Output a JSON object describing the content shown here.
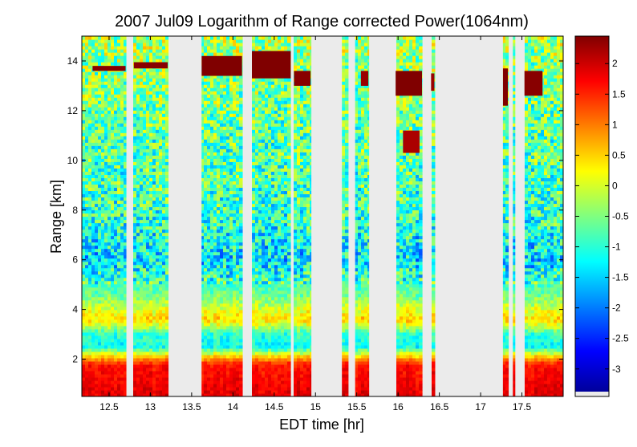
{
  "chart_data": {
    "type": "heatmap",
    "title": "2007 Jul09  Logarithm of Range corrected Power(1064nm)",
    "xlabel": "EDT time [hr]",
    "ylabel": "Range [km]",
    "xlim": [
      12.17,
      18.0
    ],
    "ylim": [
      0.5,
      15.0
    ],
    "x_ticks": [
      12.5,
      13,
      13.5,
      14,
      14.5,
      15,
      15.5,
      16,
      16.5,
      17,
      17.5
    ],
    "x_tick_labels": [
      "12.5",
      "13",
      "13.5",
      "14",
      "14.5",
      "15",
      "15.5",
      "16",
      "16.5",
      "17",
      "17.5"
    ],
    "y_ticks": [
      2,
      4,
      6,
      8,
      10,
      12,
      14
    ],
    "y_tick_labels": [
      "2",
      "4",
      "6",
      "8",
      "10",
      "12",
      "14"
    ],
    "colorbar": {
      "colormap": "jet",
      "range": [
        -3.45,
        2.45
      ],
      "ticks": [
        2,
        1.5,
        1,
        0.5,
        0,
        -0.5,
        -1,
        -1.5,
        -2,
        -2.5,
        -3
      ],
      "tick_labels": [
        "2",
        "1.5",
        "1",
        "0.5",
        "0",
        "-0.5",
        "-1",
        "-1.5",
        "-2",
        "-2.5",
        "-3"
      ]
    },
    "missing_color": "#ebebeb",
    "data_gaps_hr": [
      [
        12.71,
        12.78
      ],
      [
        13.22,
        13.62
      ],
      [
        14.12,
        14.22
      ],
      [
        14.71,
        14.73
      ],
      [
        14.95,
        15.32
      ],
      [
        15.4,
        15.48
      ],
      [
        15.65,
        15.97
      ],
      [
        16.3,
        16.39
      ],
      [
        16.45,
        17.27
      ],
      [
        17.34,
        17.39
      ],
      [
        17.42,
        17.53
      ]
    ],
    "layer_profile": [
      {
        "range_km": 0.5,
        "value": 1.9
      },
      {
        "range_km": 1.8,
        "value": 1.6
      },
      {
        "range_km": 2.1,
        "value": 0.6
      },
      {
        "range_km": 2.5,
        "value": -1.2
      },
      {
        "range_km": 3.0,
        "value": -1.0
      },
      {
        "range_km": 3.6,
        "value": 0.5
      },
      {
        "range_km": 4.6,
        "value": -0.6
      },
      {
        "range_km": 6.0,
        "value": -1.4
      },
      {
        "range_km": 8.0,
        "value": -0.9
      },
      {
        "range_km": 11.0,
        "value": -0.7
      },
      {
        "range_km": 15.0,
        "value": -0.3
      }
    ],
    "cloud_layers": [
      {
        "t_start": 12.3,
        "t_end": 12.7,
        "base_km": 13.6,
        "top_km": 13.8,
        "value": 2.4
      },
      {
        "t_start": 12.8,
        "t_end": 13.21,
        "base_km": 13.7,
        "top_km": 13.95,
        "value": 2.4
      },
      {
        "t_start": 13.62,
        "t_end": 14.11,
        "base_km": 13.4,
        "top_km": 14.2,
        "value": 2.5
      },
      {
        "t_start": 14.23,
        "t_end": 14.7,
        "base_km": 13.3,
        "top_km": 14.4,
        "value": 2.5
      },
      {
        "t_start": 14.74,
        "t_end": 14.94,
        "base_km": 13.0,
        "top_km": 13.6,
        "value": 2.4
      },
      {
        "t_start": 15.55,
        "t_end": 15.64,
        "base_km": 13.0,
        "top_km": 13.6,
        "value": 2.3
      },
      {
        "t_start": 15.97,
        "t_end": 16.29,
        "base_km": 12.6,
        "top_km": 13.6,
        "value": 2.5
      },
      {
        "t_start": 16.06,
        "t_end": 16.26,
        "base_km": 10.3,
        "top_km": 11.2,
        "value": 2.2
      },
      {
        "t_start": 16.4,
        "t_end": 16.44,
        "base_km": 12.8,
        "top_km": 13.5,
        "value": 2.3
      },
      {
        "t_start": 17.27,
        "t_end": 17.33,
        "base_km": 12.2,
        "top_km": 13.7,
        "value": 2.5
      },
      {
        "t_start": 17.53,
        "t_end": 17.75,
        "base_km": 12.6,
        "top_km": 13.6,
        "value": 2.4
      }
    ]
  }
}
